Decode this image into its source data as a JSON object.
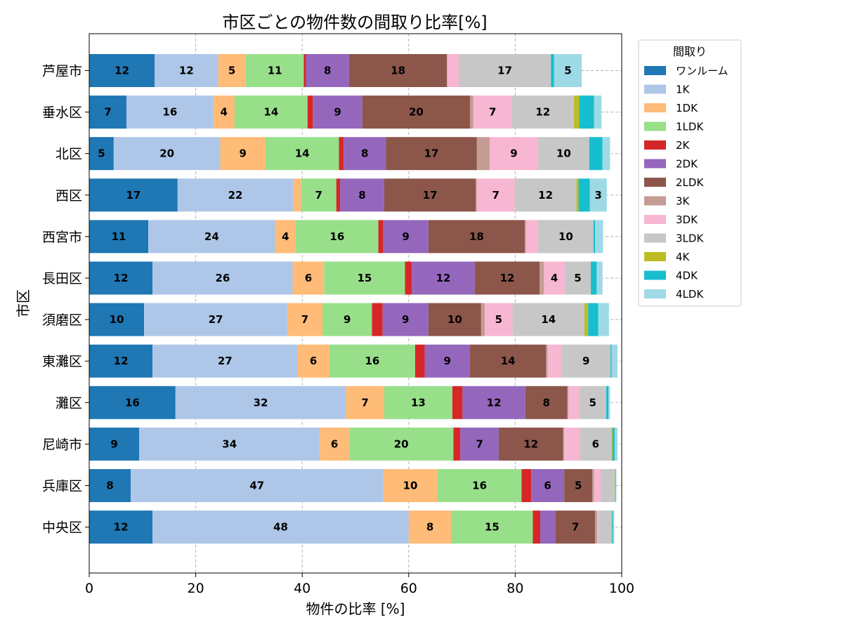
{
  "chart_data": {
    "type": "bar",
    "orientation": "horizontal",
    "stacked": true,
    "title": "市区ごとの物件数の間取り比率[%]",
    "xlabel": "物件の比率 [%]",
    "ylabel": "市区",
    "xlim": [
      0,
      100
    ],
    "xticks": [
      "0",
      "20",
      "40",
      "60",
      "80",
      "100"
    ],
    "grid": true,
    "legend_title": "間取り",
    "legend_position": "outside-top-right",
    "label_min": 3,
    "categories": [
      "芦屋市",
      "垂水区",
      "北区",
      "西区",
      "西宮市",
      "長田区",
      "須磨区",
      "東灘区",
      "灘区",
      "尼崎市",
      "兵庫区",
      "中央区"
    ],
    "series": [
      {
        "name": "ワンルーム",
        "color": "#1f77b4",
        "values": [
          12.3,
          7.0,
          4.6,
          16.6,
          11.1,
          11.9,
          10.3,
          11.9,
          16.2,
          9.4,
          7.8,
          11.9
        ]
      },
      {
        "name": "1K",
        "color": "#aec7e8",
        "values": [
          11.9,
          16.3,
          20.0,
          21.7,
          23.8,
          26.3,
          26.9,
          27.2,
          32.0,
          33.9,
          47.4,
          48.1
        ]
      },
      {
        "name": "1DK",
        "color": "#ffbb78",
        "values": [
          5.2,
          4.0,
          8.5,
          1.5,
          3.9,
          5.9,
          6.6,
          6.0,
          7.2,
          5.5,
          10.2,
          8.0
        ]
      },
      {
        "name": "1LDK",
        "color": "#98df8a",
        "values": [
          10.9,
          13.7,
          13.8,
          6.6,
          15.5,
          15.2,
          9.3,
          16.1,
          12.8,
          19.6,
          15.8,
          15.3
        ]
      },
      {
        "name": "2K",
        "color": "#d62728",
        "values": [
          0.4,
          1.0,
          0.9,
          0.7,
          0.9,
          1.3,
          2.0,
          1.8,
          1.9,
          1.3,
          1.8,
          1.4
        ]
      },
      {
        "name": "2DK",
        "color": "#9467bd",
        "values": [
          8.1,
          9.3,
          7.9,
          8.3,
          8.5,
          11.8,
          8.6,
          8.5,
          11.8,
          7.2,
          6.2,
          2.9
        ]
      },
      {
        "name": "2LDK",
        "color": "#8c564b",
        "values": [
          18.4,
          20.2,
          17.1,
          17.2,
          18.1,
          12.2,
          9.9,
          14.3,
          7.9,
          12.1,
          5.3,
          7.4
        ]
      },
      {
        "name": "3K",
        "color": "#c49c94",
        "values": [
          0.0,
          0.6,
          2.4,
          0.2,
          0.2,
          0.8,
          0.7,
          0.3,
          0.2,
          0.2,
          0.3,
          0.4
        ]
      },
      {
        "name": "3DK",
        "color": "#f7b6d2",
        "values": [
          2.2,
          7.3,
          9.1,
          7.1,
          2.3,
          3.9,
          5.2,
          2.6,
          2.0,
          2.9,
          1.3,
          0.2
        ]
      },
      {
        "name": "3LDK",
        "color": "#c7c7c7",
        "values": [
          17.3,
          11.6,
          9.6,
          11.6,
          10.4,
          4.9,
          13.5,
          9.2,
          5.1,
          6.0,
          2.6,
          2.5
        ]
      },
      {
        "name": "4K",
        "color": "#bcbd22",
        "values": [
          0.0,
          1.0,
          0.0,
          0.4,
          0.0,
          0.0,
          0.7,
          0.0,
          0.0,
          0.2,
          0.1,
          0.1
        ]
      },
      {
        "name": "4DK",
        "color": "#17becf",
        "values": [
          0.6,
          2.8,
          2.5,
          2.1,
          0.3,
          1.1,
          1.9,
          0.2,
          0.4,
          0.4,
          0.1,
          0.2
        ]
      },
      {
        "name": "4LDK",
        "color": "#9edae5",
        "values": [
          5.2,
          1.4,
          1.4,
          3.2,
          1.5,
          1.1,
          2.0,
          1.1,
          0.3,
          0.5,
          0.1,
          0.2
        ]
      }
    ]
  }
}
